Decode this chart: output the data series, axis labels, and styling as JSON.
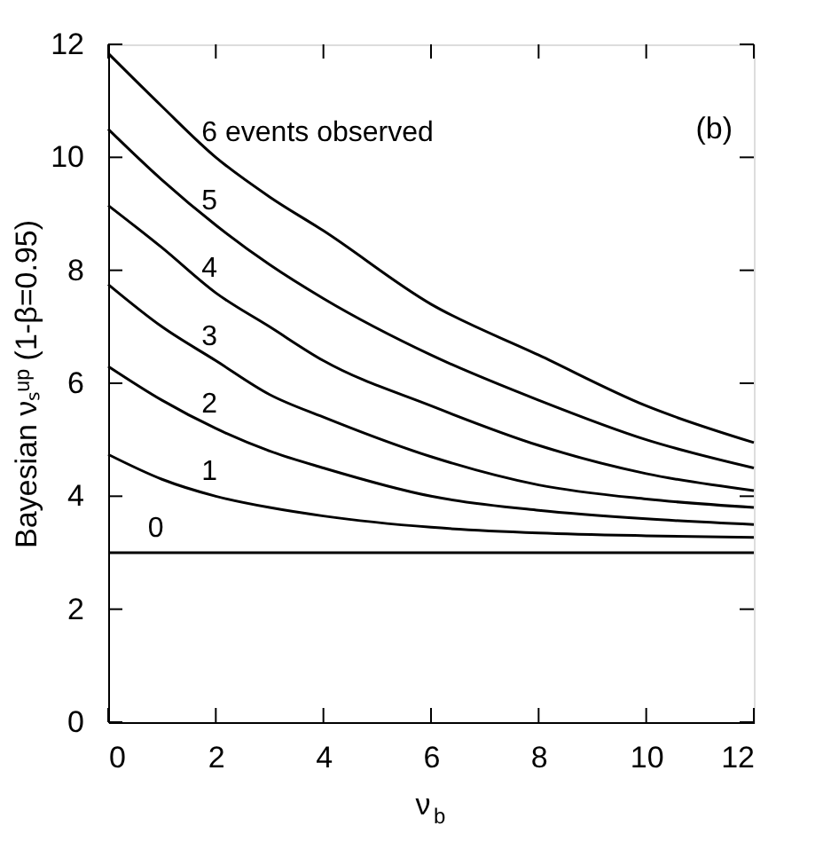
{
  "chart_data": {
    "type": "line",
    "xlabel": "ν$_{b}$",
    "ylabel": "Bayesian νₛᵘᵖ (1-β=0.95)",
    "x": [
      0,
      1,
      2,
      3,
      4,
      6,
      8,
      10,
      12
    ],
    "series": [
      {
        "name": "0",
        "color": "#000000",
        "values": [
          3.0,
          3.0,
          3.0,
          3.0,
          3.0,
          3.0,
          3.0,
          3.0,
          3.0
        ]
      },
      {
        "name": "1",
        "color": "#000000",
        "values": [
          4.74,
          4.3,
          4.0,
          3.8,
          3.65,
          3.45,
          3.35,
          3.3,
          3.27
        ]
      },
      {
        "name": "2",
        "color": "#000000",
        "values": [
          6.3,
          5.7,
          5.2,
          4.8,
          4.5,
          4.0,
          3.75,
          3.6,
          3.5
        ]
      },
      {
        "name": "3",
        "color": "#000000",
        "values": [
          7.75,
          7.0,
          6.4,
          5.8,
          5.4,
          4.7,
          4.2,
          3.95,
          3.8
        ]
      },
      {
        "name": "4",
        "color": "#000000",
        "values": [
          9.15,
          8.4,
          7.6,
          7.0,
          6.4,
          5.6,
          4.9,
          4.4,
          4.1
        ]
      },
      {
        "name": "5",
        "color": "#000000",
        "values": [
          10.5,
          9.6,
          8.8,
          8.1,
          7.5,
          6.5,
          5.7,
          5.0,
          4.5
        ]
      },
      {
        "name": "6 events observed",
        "color": "#000000",
        "values": [
          11.84,
          10.9,
          10.0,
          9.3,
          8.7,
          7.4,
          6.5,
          5.6,
          4.95
        ]
      }
    ],
    "xlim": [
      0,
      12
    ],
    "ylim": [
      0,
      12
    ],
    "xticks": [
      0,
      2,
      4,
      6,
      8,
      10,
      12
    ],
    "yticks": [
      0,
      2,
      4,
      6,
      8,
      10,
      12
    ],
    "grid": false,
    "legend": false,
    "marker": "none",
    "line_style": "solid",
    "annotations": [
      "(b)"
    ]
  }
}
